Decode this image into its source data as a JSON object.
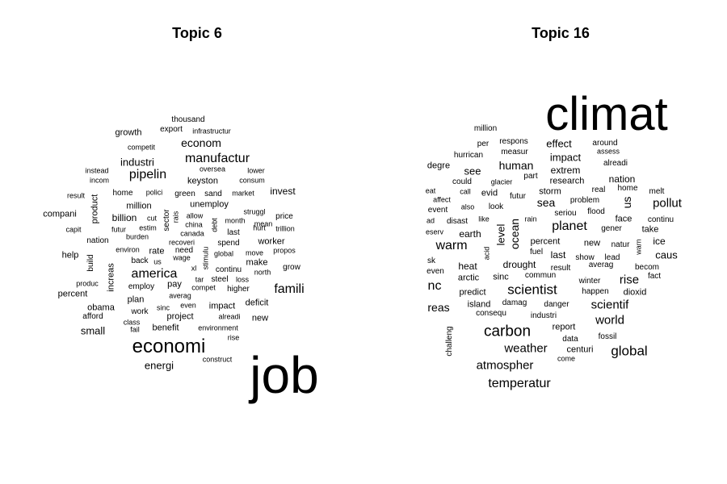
{
  "panels": [
    {
      "title": "Topic 6",
      "words": [
        "job",
        "economi",
        "america",
        "famili",
        "small",
        "energi",
        "pipelin",
        "manufactur",
        "econom",
        "industri",
        "invest",
        "billion",
        "million",
        "compani",
        "percent",
        "help",
        "product",
        "increas",
        "worker",
        "obama",
        "new",
        "thousand",
        "export",
        "growth",
        "infrastructur",
        "competit",
        "instead",
        "incom",
        "oversea",
        "lower",
        "consum",
        "keyston",
        "home",
        "polici",
        "green",
        "sand",
        "market",
        "result",
        "unemploy",
        "struggl",
        "mean",
        "price",
        "rais",
        "sector",
        "allow",
        "cut",
        "debt",
        "month",
        "china",
        "estim",
        "capit",
        "futur",
        "hurt",
        "trillion",
        "canada",
        "burden",
        "last",
        "nation",
        "recoveri",
        "spend",
        "environ",
        "rate",
        "need",
        "propos",
        "build",
        "back",
        "us",
        "wage",
        "stimulu",
        "global",
        "move",
        "make",
        "grow",
        "xl",
        "continu",
        "north",
        "tar",
        "steel",
        "loss",
        "produc",
        "pay",
        "compet",
        "higher",
        "employ",
        "averag",
        "plan",
        "deficit",
        "sinc",
        "even",
        "impact",
        "afford",
        "work",
        "project",
        "alreadi",
        "class",
        "benefit",
        "fail",
        "environment",
        "rise",
        "construct"
      ]
    },
    {
      "title": "Topic 16",
      "words": [
        "climat",
        "carbon",
        "global",
        "scientist",
        "temperatur",
        "atmospher",
        "weather",
        "warm",
        "planet",
        "pollut",
        "scientif",
        "world",
        "rise",
        "human",
        "sea",
        "ocean",
        "level",
        "effect",
        "impact",
        "extrem",
        "million",
        "per",
        "respons",
        "around",
        "hurrican",
        "measur",
        "assess",
        "degre",
        "see",
        "alreadi",
        "research",
        "nation",
        "part",
        "could",
        "glacier",
        "eat",
        "call",
        "evid",
        "futur",
        "storm",
        "real",
        "home",
        "melt",
        "us",
        "affect",
        "problem",
        "event",
        "also",
        "look",
        "seriou",
        "flood",
        "ad",
        "disast",
        "like",
        "rain",
        "face",
        "continu",
        "gener",
        "take",
        "eserv",
        "earth",
        "percent",
        "natur",
        "new",
        "warn",
        "ice",
        "fuel",
        "sk",
        "last",
        "lead",
        "caus",
        "heat",
        "drought",
        "even",
        "show",
        "averag",
        "becom",
        "acid",
        "result",
        "fact",
        "nc",
        "arctic",
        "sinc",
        "commun",
        "winter",
        "predict",
        "happen",
        "dioxid",
        "reas",
        "island",
        "damag",
        "danger",
        "consequ",
        "industri",
        "challeng",
        "report",
        "data",
        "fossil",
        "centuri",
        "come"
      ]
    }
  ]
}
